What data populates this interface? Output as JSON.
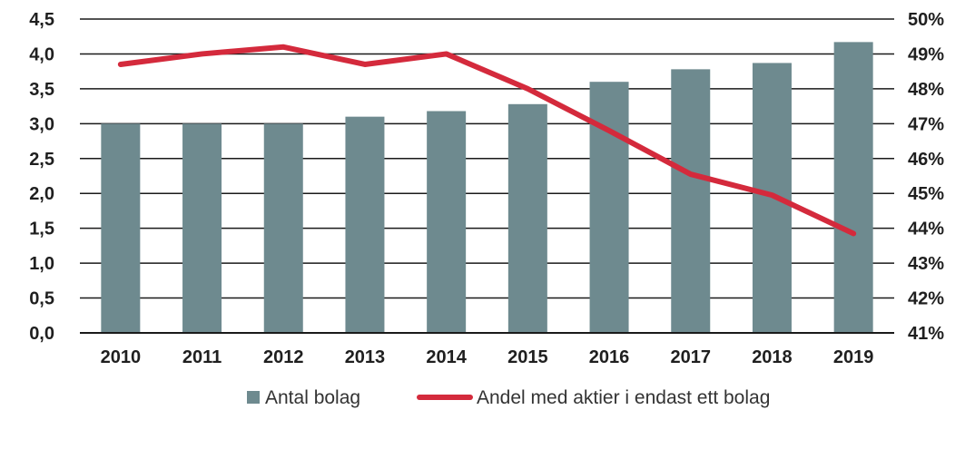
{
  "chart_data": {
    "type": "bar",
    "categories": [
      "2010",
      "2011",
      "2012",
      "2013",
      "2014",
      "2015",
      "2016",
      "2017",
      "2018",
      "2019"
    ],
    "series": [
      {
        "name": "Antal bolag",
        "type": "bar",
        "axis": "left",
        "color": "#6e8a8f",
        "values": [
          3.0,
          3.0,
          3.0,
          3.1,
          3.18,
          3.28,
          3.6,
          3.78,
          3.87,
          4.17
        ]
      },
      {
        "name": "Andel med aktier i endast ett bolag",
        "type": "line",
        "axis": "right",
        "color": "#d42a3c",
        "values": [
          48.7,
          49.0,
          49.2,
          48.7,
          49.0,
          48.0,
          46.8,
          45.55,
          44.95,
          43.85
        ]
      }
    ],
    "y_left": {
      "ylim": [
        0,
        4.5
      ],
      "ticks": [
        "0,0",
        "0,5",
        "1,0",
        "1,5",
        "2,0",
        "2,5",
        "3,0",
        "3,5",
        "4,0",
        "4,5"
      ]
    },
    "y_right": {
      "ylim": [
        41,
        50
      ],
      "ticks": [
        "41%",
        "42%",
        "43%",
        "44%",
        "45%",
        "46%",
        "47%",
        "48%",
        "49%",
        "50%"
      ]
    },
    "legend": {
      "position": "bottom-center",
      "items": [
        "Antal bolag",
        "Andel med aktier i endast ett bolag"
      ]
    },
    "grid": true
  }
}
